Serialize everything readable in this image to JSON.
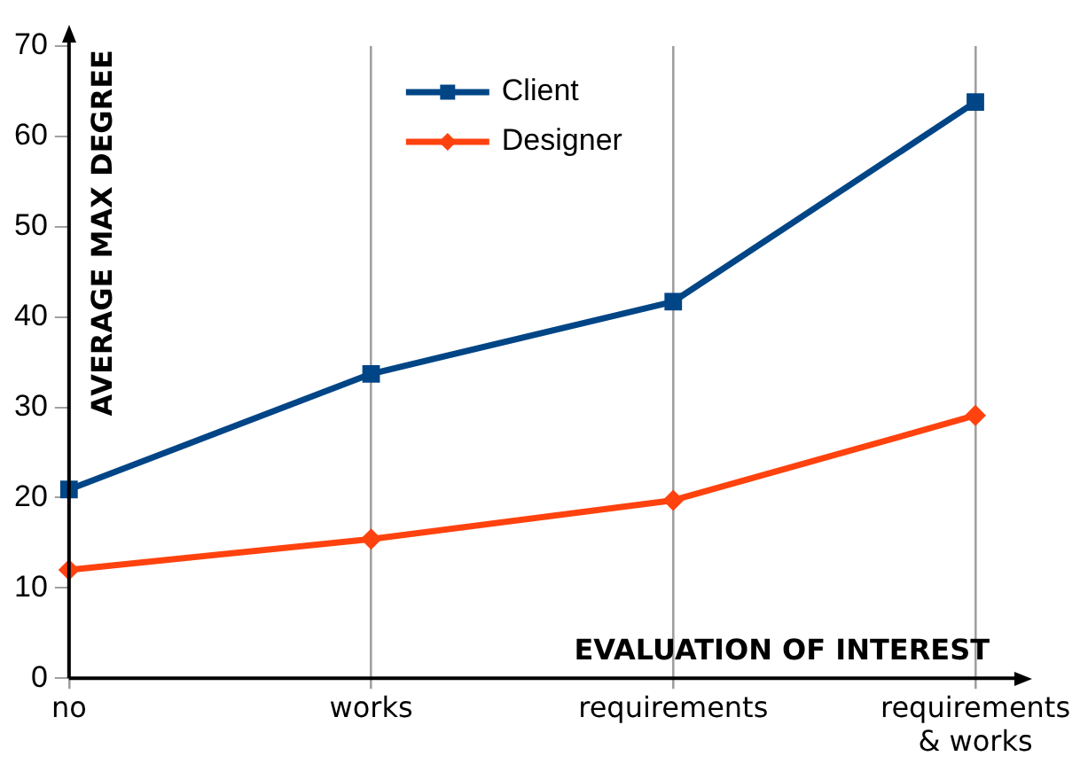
{
  "chart_data": {
    "type": "line",
    "xlabel": "EVALUATION OF INTEREST",
    "ylabel": "AVERAGE MAX DEGREE",
    "categories": [
      "no",
      "works",
      "requirements",
      "requirements & works"
    ],
    "series": [
      {
        "name": "Client",
        "color": "#004586",
        "marker": "square",
        "values": [
          20.9,
          33.7,
          41.7,
          63.8
        ]
      },
      {
        "name": "Designer",
        "color": "#ff420e",
        "marker": "diamond",
        "values": [
          12,
          15.4,
          19.7,
          29.1
        ]
      }
    ],
    "ylim": [
      0,
      70
    ],
    "yticks": [
      0,
      10,
      20,
      30,
      40,
      50,
      60,
      70
    ],
    "grid": "x",
    "legend": "top",
    "line_style": "solid"
  }
}
